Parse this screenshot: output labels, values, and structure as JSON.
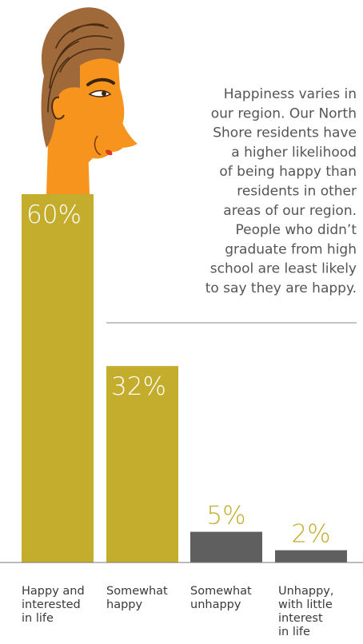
{
  "annotation": {
    "lines": [
      "Happiness varies in",
      "our region. Our North",
      "Shore residents have",
      "a higher likelihood",
      "of being happy than",
      "residents in other",
      "areas of our region.",
      "People who didn’t",
      "graduate from high",
      "school are least likely",
      "to say they are happy."
    ]
  },
  "chart_data": {
    "type": "bar",
    "categories": [
      [
        "Happy and",
        "interested",
        "in life"
      ],
      [
        "Somewhat",
        "happy"
      ],
      [
        "Somewhat",
        "unhappy"
      ],
      [
        "Unhappy,",
        "with little",
        "interest",
        "in life"
      ]
    ],
    "values": [
      60,
      32,
      5,
      2
    ],
    "value_labels": [
      "60%",
      "32%",
      "5%",
      "2%"
    ],
    "ylim": [
      0,
      60
    ],
    "grid": false,
    "colors": {
      "positive_bar": "#c4ac2c",
      "negative_bar": "#5f5f5f",
      "value_on_bar": "#ffffff",
      "value_above_bar": "#c4ac2c",
      "baseline": "#777777"
    }
  }
}
